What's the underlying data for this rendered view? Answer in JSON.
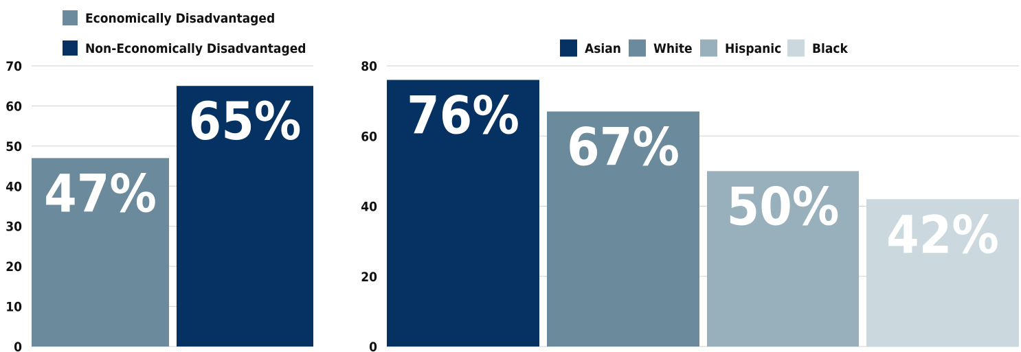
{
  "chart_data": [
    {
      "type": "bar",
      "legend_position": "top-left",
      "grid": true,
      "ylim": [
        0,
        70
      ],
      "yticks": [
        0,
        10,
        20,
        30,
        40,
        50,
        60,
        70
      ],
      "series": [
        {
          "name": "Economically Disadvantaged",
          "value": 47,
          "label": "47%",
          "color": "#6b8b9c"
        },
        {
          "name": "Non-Economically Disadvantaged",
          "value": 65,
          "label": "65%",
          "color": "#053263"
        }
      ]
    },
    {
      "type": "bar",
      "legend_position": "top",
      "grid": true,
      "ylim": [
        0,
        80
      ],
      "yticks": [
        0,
        20,
        40,
        60,
        80
      ],
      "series": [
        {
          "name": "Asian",
          "value": 76,
          "label": "76%",
          "color": "#053263"
        },
        {
          "name": "White",
          "value": 67,
          "label": "67%",
          "color": "#6b8b9c"
        },
        {
          "name": "Hispanic",
          "value": 50,
          "label": "50%",
          "color": "#98b0bc"
        },
        {
          "name": "Black",
          "value": 42,
          "label": "42%",
          "color": "#cbd9de"
        }
      ]
    }
  ]
}
